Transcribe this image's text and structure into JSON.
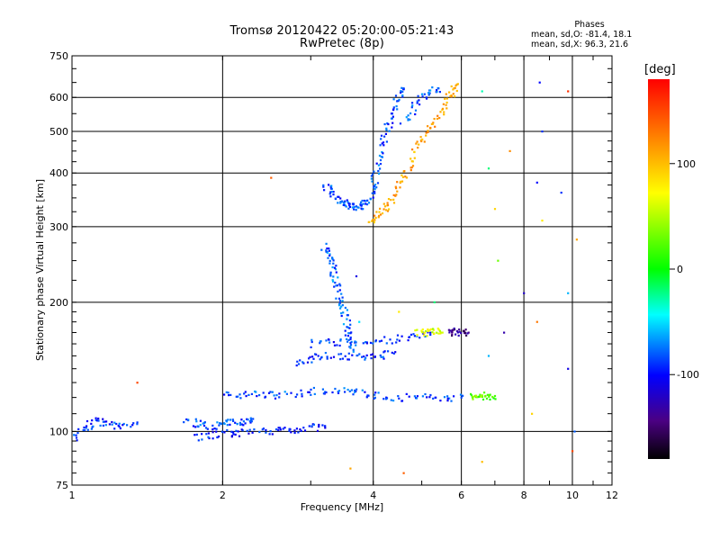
{
  "chart_data": {
    "type": "scatter",
    "title": "Tromsø 20120422 05:20:00-05:21:43",
    "subtitle": "RwPretec (8p)",
    "xlabel": "Frequency [MHz]",
    "ylabel": "Stationary phase Virtual Height [km]",
    "x_scale": "log",
    "y_scale": "log",
    "xlim": [
      1,
      12
    ],
    "ylim": [
      75,
      750
    ],
    "x_ticks": [
      1,
      2,
      4,
      6,
      8,
      10,
      12
    ],
    "y_ticks": [
      75,
      100,
      200,
      300,
      400,
      500,
      600,
      750
    ],
    "grid": true,
    "legend": {
      "title": "Phases",
      "lines": [
        "mean, sd,O: -81.4, 18.1",
        "mean, sd,X:  96.3, 21.6"
      ],
      "placement": "top-right"
    },
    "colorbar": {
      "label": "[deg]",
      "ticks": [
        100,
        0,
        -100
      ],
      "range": [
        -180,
        180
      ],
      "colormap": "rainbow"
    },
    "traces": [
      {
        "name": "",
        "phase": -90,
        "points": [
          [
            0.94,
            96
          ],
          [
            0.97,
            94
          ],
          [
            1.02,
            98
          ],
          [
            1.08,
            103
          ],
          [
            1.12,
            106
          ],
          [
            1.18,
            104
          ],
          [
            1.24,
            102
          ],
          [
            1.35,
            105
          ]
        ]
      },
      {
        "name": "",
        "phase": -85,
        "points": [
          [
            1.7,
            106
          ],
          [
            1.8,
            104
          ],
          [
            1.9,
            103
          ],
          [
            2.0,
            104
          ],
          [
            2.1,
            105
          ],
          [
            2.2,
            106
          ],
          [
            2.3,
            107
          ]
        ]
      },
      {
        "name": "",
        "phase": -95,
        "points": [
          [
            1.75,
            97
          ],
          [
            1.9,
            98
          ],
          [
            2.05,
            99
          ],
          [
            2.2,
            99
          ],
          [
            2.4,
            100
          ],
          [
            2.6,
            101
          ],
          [
            2.8,
            101
          ],
          [
            3.0,
            102
          ],
          [
            3.2,
            103
          ]
        ]
      },
      {
        "name": "",
        "phase": -85,
        "points": [
          [
            2.0,
            121
          ],
          [
            2.2,
            122
          ],
          [
            2.4,
            122
          ],
          [
            2.6,
            121
          ],
          [
            2.9,
            123
          ],
          [
            3.2,
            125
          ],
          [
            3.5,
            124
          ],
          [
            3.8,
            123
          ],
          [
            4.1,
            121
          ],
          [
            4.5,
            120
          ],
          [
            5.0,
            120
          ],
          [
            5.5,
            120
          ],
          [
            6.0,
            120
          ]
        ]
      },
      {
        "name": "",
        "phase": -90,
        "points": [
          [
            2.8,
            145
          ],
          [
            3.0,
            148
          ],
          [
            3.2,
            150
          ],
          [
            3.5,
            150
          ],
          [
            3.8,
            149
          ],
          [
            4.1,
            150
          ],
          [
            4.4,
            152
          ]
        ]
      },
      {
        "name": "",
        "phase": -90,
        "points": [
          [
            3.0,
            160
          ],
          [
            3.3,
            162
          ],
          [
            3.6,
            161
          ],
          [
            4.0,
            162
          ],
          [
            4.4,
            164
          ],
          [
            4.8,
            166
          ],
          [
            5.2,
            168
          ]
        ]
      },
      {
        "name": "",
        "phase": -80,
        "points": [
          [
            3.2,
            270
          ],
          [
            3.25,
            260
          ],
          [
            3.3,
            245
          ],
          [
            3.35,
            230
          ],
          [
            3.4,
            215
          ],
          [
            3.45,
            200
          ],
          [
            3.5,
            188
          ],
          [
            3.55,
            175
          ],
          [
            3.6,
            165
          ],
          [
            3.65,
            155
          ]
        ]
      },
      {
        "name": "",
        "phase": -85,
        "points": [
          [
            3.2,
            375
          ],
          [
            3.3,
            360
          ],
          [
            3.4,
            350
          ],
          [
            3.5,
            340
          ],
          [
            3.6,
            335
          ],
          [
            3.7,
            332
          ],
          [
            3.8,
            335
          ],
          [
            3.9,
            345
          ],
          [
            4.0,
            370
          ],
          [
            4.05,
            400
          ],
          [
            4.1,
            440
          ],
          [
            4.2,
            480
          ],
          [
            4.3,
            520
          ],
          [
            4.4,
            560
          ],
          [
            4.5,
            600
          ],
          [
            4.6,
            630
          ]
        ]
      },
      {
        "name": "",
        "phase": -80,
        "points": [
          [
            4.6,
            520
          ],
          [
            4.8,
            560
          ],
          [
            5.0,
            600
          ],
          [
            5.2,
            620
          ],
          [
            5.4,
            630
          ]
        ]
      },
      {
        "name": "",
        "phase": 110,
        "points": [
          [
            3.95,
            310
          ],
          [
            4.05,
            318
          ],
          [
            4.2,
            330
          ],
          [
            4.35,
            345
          ],
          [
            4.5,
            370
          ],
          [
            4.65,
            400
          ],
          [
            4.8,
            440
          ],
          [
            5.0,
            480
          ],
          [
            5.2,
            510
          ],
          [
            5.4,
            540
          ],
          [
            5.6,
            580
          ],
          [
            5.75,
            620
          ],
          [
            5.85,
            640
          ]
        ]
      },
      {
        "name": "",
        "phase": 60,
        "points": [
          [
            4.9,
            170
          ],
          [
            5.1,
            170
          ],
          [
            5.3,
            171
          ],
          [
            5.5,
            170
          ]
        ]
      },
      {
        "name": "",
        "phase": -140,
        "points": [
          [
            5.6,
            170
          ],
          [
            5.8,
            170
          ],
          [
            6.0,
            171
          ],
          [
            6.2,
            170
          ]
        ]
      },
      {
        "name": "",
        "phase": 30,
        "points": [
          [
            6.3,
            120
          ],
          [
            6.5,
            121
          ],
          [
            6.7,
            121
          ]
        ]
      },
      {
        "name": "",
        "phase": 20,
        "points": [
          [
            6.8,
            120
          ],
          [
            7.0,
            121
          ]
        ]
      }
    ],
    "sparse_points": [
      [
        2.5,
        390,
        140
      ],
      [
        1.35,
        130,
        150
      ],
      [
        8.6,
        650,
        -100
      ],
      [
        8.7,
        500,
        -90
      ],
      [
        9.8,
        620,
        160
      ],
      [
        6.6,
        620,
        -30
      ],
      [
        7.1,
        250,
        30
      ],
      [
        8.7,
        310,
        80
      ],
      [
        9.8,
        210,
        -60
      ],
      [
        8.5,
        180,
        130
      ],
      [
        9.8,
        140,
        -110
      ],
      [
        10.2,
        280,
        110
      ],
      [
        10.1,
        100,
        -80
      ],
      [
        6.8,
        410,
        -20
      ],
      [
        7.0,
        330,
        90
      ],
      [
        7.5,
        450,
        120
      ],
      [
        8.5,
        380,
        -100
      ],
      [
        8.0,
        210,
        -120
      ],
      [
        9.5,
        360,
        -90
      ],
      [
        4.6,
        80,
        140
      ],
      [
        3.7,
        230,
        -110
      ],
      [
        3.75,
        180,
        -50
      ],
      [
        4.5,
        190,
        80
      ],
      [
        5.3,
        200,
        -20
      ],
      [
        6.6,
        85,
        100
      ],
      [
        10.0,
        90,
        150
      ],
      [
        7.3,
        170,
        -130
      ],
      [
        6.8,
        150,
        -60
      ],
      [
        8.3,
        110,
        90
      ],
      [
        3.6,
        82,
        110
      ]
    ]
  }
}
